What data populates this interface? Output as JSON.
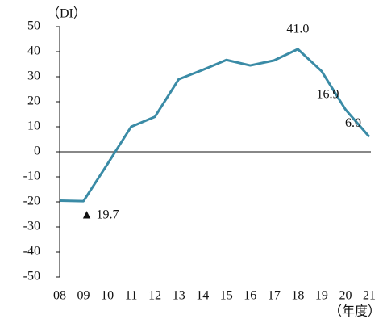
{
  "chart_data": {
    "type": "line",
    "y_label": "（DI）",
    "x_label": "（年度）",
    "categories": [
      "08",
      "09",
      "10",
      "11",
      "12",
      "13",
      "14",
      "15",
      "16",
      "17",
      "18",
      "19",
      "20",
      "21"
    ],
    "series": [
      {
        "name": null,
        "color": "#3a8ba6",
        "values": [
          -19.5,
          -19.7,
          -5,
          10,
          14,
          29,
          32.7,
          36.7,
          34.5,
          36.5,
          41.0,
          32.2,
          16.9,
          6.0
        ],
        "value_labels": [
          null,
          "▲ 19.7",
          null,
          null,
          null,
          null,
          null,
          null,
          null,
          null,
          "41.0",
          null,
          "16.9",
          "6.0"
        ]
      }
    ],
    "ylim": [
      -50,
      50
    ],
    "yticks": [
      -50,
      -40,
      -30,
      -20,
      -10,
      0,
      10,
      20,
      30,
      40,
      50
    ]
  }
}
